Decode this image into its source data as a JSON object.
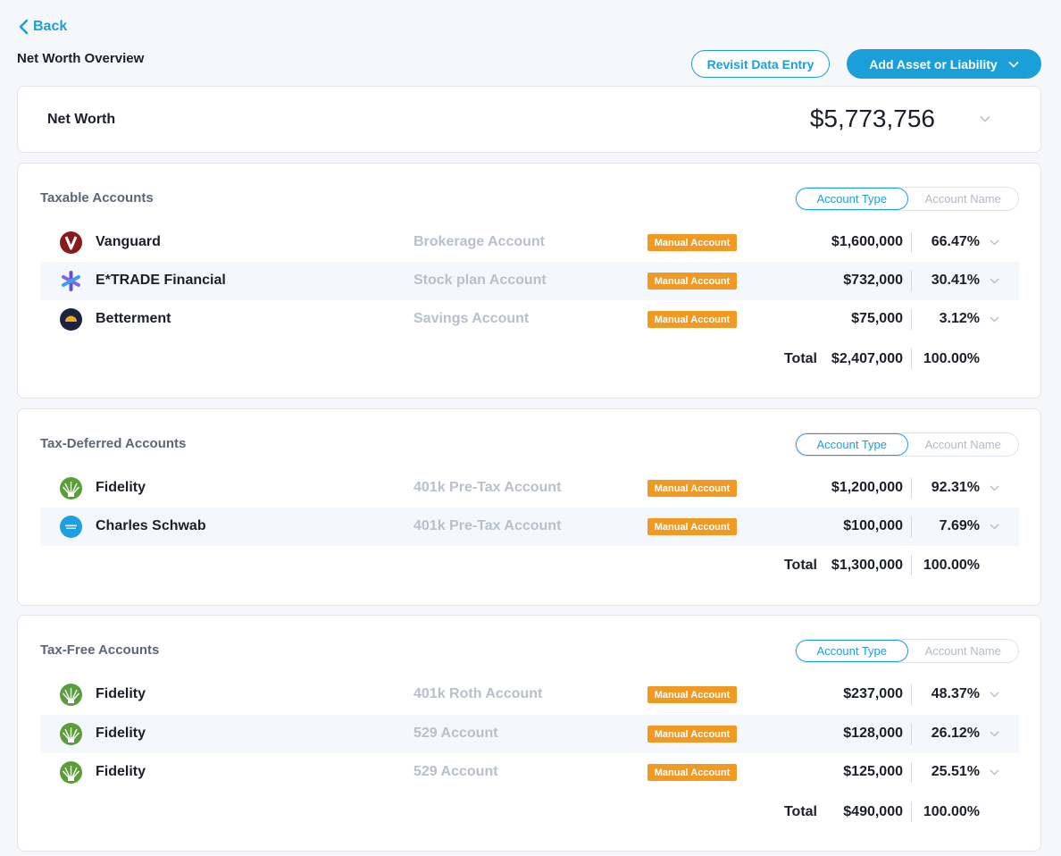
{
  "nav": {
    "back_label": "Back"
  },
  "page": {
    "title": "Net Worth Overview"
  },
  "actions": {
    "revisit_label": "Revisit Data Entry",
    "add_label": "Add Asset or Liability"
  },
  "net_worth": {
    "label": "Net Worth",
    "value": "$5,773,756"
  },
  "toggle": {
    "type_label": "Account Type",
    "name_label": "Account Name"
  },
  "sections": [
    {
      "title": "Taxable Accounts",
      "rows": [
        {
          "institution": "Vanguard",
          "account": "Brokerage Account",
          "badge": "Manual Account",
          "amount": "$1,600,000",
          "percent": "66.47%",
          "logo": "vanguard-logo"
        },
        {
          "institution": "E*TRADE Financial",
          "account": "Stock plan Account",
          "badge": "Manual Account",
          "amount": "$732,000",
          "percent": "30.41%",
          "logo": "etrade-logo"
        },
        {
          "institution": "Betterment",
          "account": "Savings Account",
          "badge": "Manual Account",
          "amount": "$75,000",
          "percent": "3.12%",
          "logo": "betterment-logo"
        }
      ],
      "total_label": "Total",
      "total_amount": "$2,407,000",
      "total_percent": "100.00%"
    },
    {
      "title": "Tax-Deferred Accounts",
      "rows": [
        {
          "institution": "Fidelity",
          "account": "401k Pre-Tax Account",
          "badge": "Manual Account",
          "amount": "$1,200,000",
          "percent": "92.31%",
          "logo": "fidelity-logo"
        },
        {
          "institution": "Charles Schwab",
          "account": "401k Pre-Tax Account",
          "badge": "Manual Account",
          "amount": "$100,000",
          "percent": "7.69%",
          "logo": "schwab-logo"
        }
      ],
      "total_label": "Total",
      "total_amount": "$1,300,000",
      "total_percent": "100.00%"
    },
    {
      "title": "Tax-Free Accounts",
      "rows": [
        {
          "institution": "Fidelity",
          "account": "401k Roth Account",
          "badge": "Manual Account",
          "amount": "$237,000",
          "percent": "48.37%",
          "logo": "fidelity-logo"
        },
        {
          "institution": "Fidelity",
          "account": "529 Account",
          "badge": "Manual Account",
          "amount": "$128,000",
          "percent": "26.12%",
          "logo": "fidelity-logo"
        },
        {
          "institution": "Fidelity",
          "account": "529 Account",
          "badge": "Manual Account",
          "amount": "$125,000",
          "percent": "25.51%",
          "logo": "fidelity-logo"
        }
      ],
      "total_label": "Total",
      "total_amount": "$490,000",
      "total_percent": "100.00%"
    }
  ],
  "colors": {
    "accent": "#1a9fd9",
    "badge": "#f09a24",
    "muted": "#b8c0cb"
  }
}
